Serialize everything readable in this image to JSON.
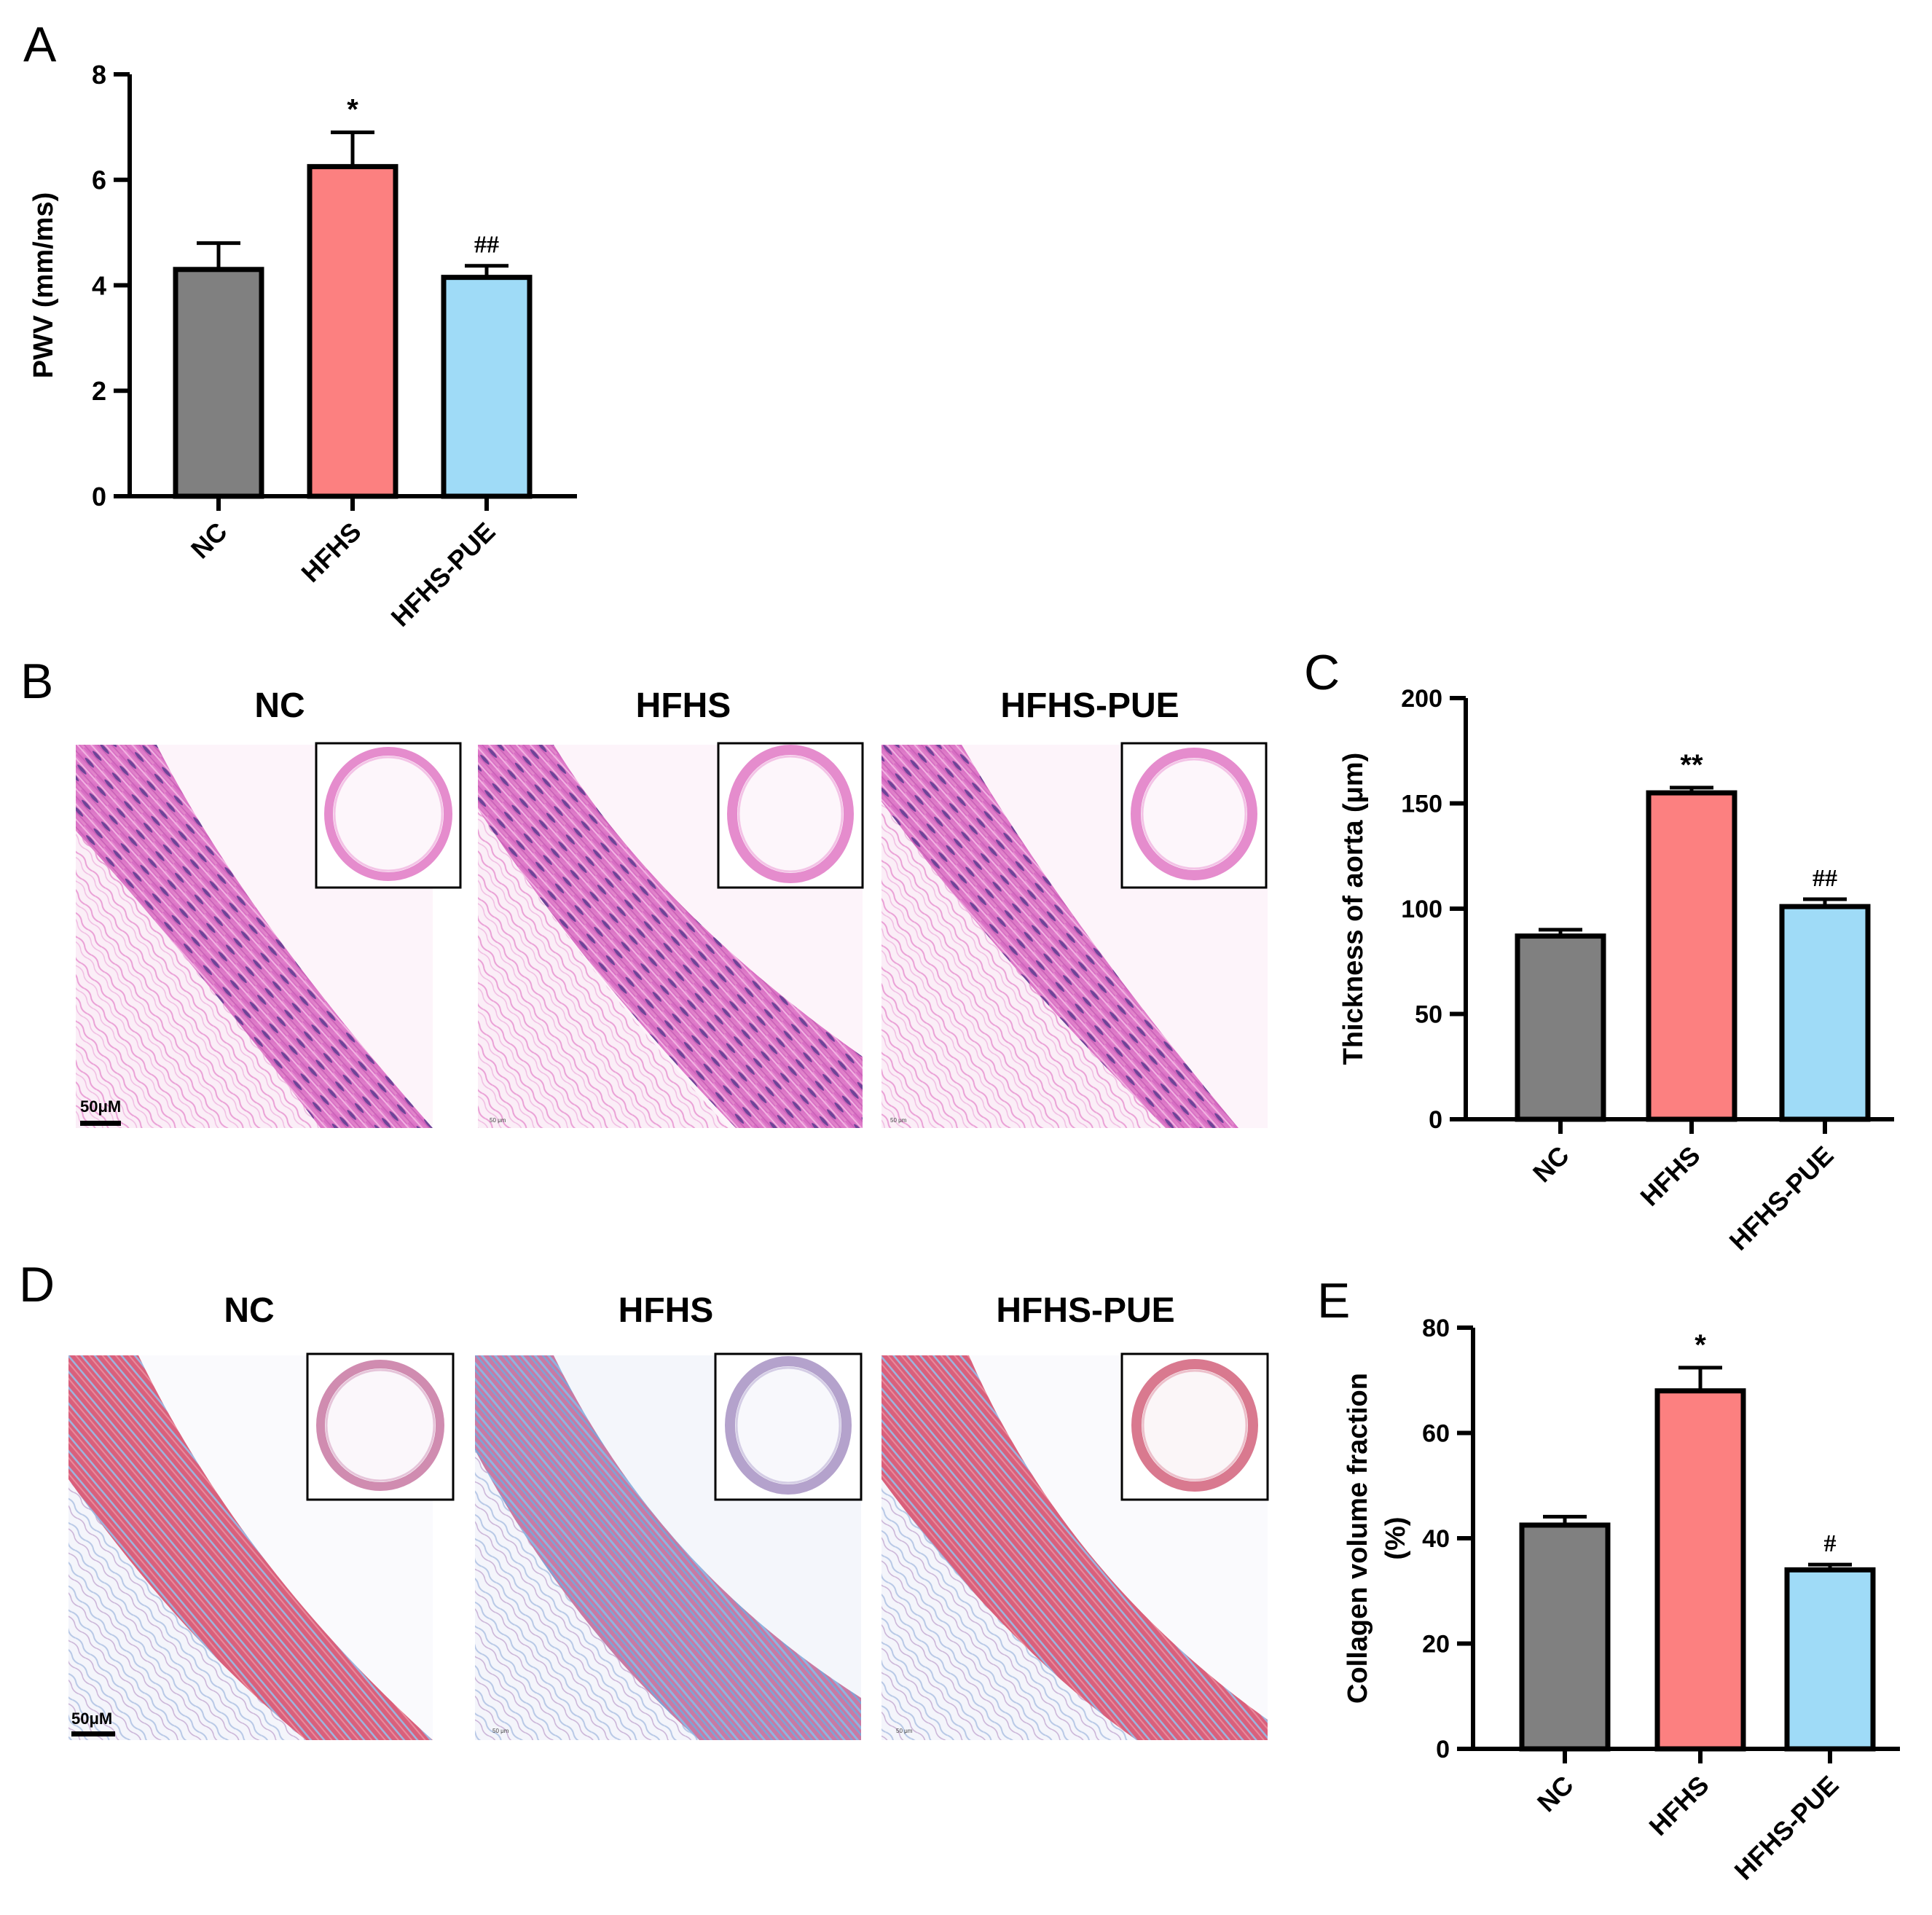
{
  "colors": {
    "nc": "#808080",
    "hfhs": "#fc8080",
    "hfhs_pue": "#9fdbf7",
    "he_stain": "#e27fc8",
    "he_nuclei": "#5a3a8c",
    "masson_red": "#e2506e",
    "masson_blue": "#8db1dc"
  },
  "panels": {
    "a": "A",
    "b": "B",
    "c": "C",
    "d": "D",
    "e": "E"
  },
  "micrographs": {
    "he": {
      "titles": [
        "NC",
        "HFHS",
        "HFHS-PUE"
      ],
      "scale_bar": "50μM",
      "tiny_scale": [
        "50 μm",
        "50 μm"
      ]
    },
    "masson": {
      "titles": [
        "NC",
        "HFHS",
        "HFHS-PUE"
      ],
      "scale_bar": "50μM",
      "tiny_scale": [
        "50 μm",
        "50 μm"
      ]
    }
  },
  "chart_data": [
    {
      "id": "A",
      "type": "bar",
      "categories": [
        "NC",
        "HFHS",
        "HFHS-PUE"
      ],
      "values": [
        4.3,
        6.25,
        4.15
      ],
      "errors": [
        0.5,
        0.65,
        0.22
      ],
      "annotations": [
        "",
        "*",
        "##"
      ],
      "title": "",
      "xlabel": "",
      "ylabel": "PWV (mm/ms)",
      "ylim": [
        0,
        8
      ],
      "yticks": [
        0,
        2,
        4,
        6,
        8
      ]
    },
    {
      "id": "C",
      "type": "bar",
      "categories": [
        "NC",
        "HFHS",
        "HFHS-PUE"
      ],
      "values": [
        87,
        155,
        101
      ],
      "errors": [
        3,
        2.5,
        3.5
      ],
      "annotations": [
        "",
        "**",
        "##"
      ],
      "title": "",
      "xlabel": "",
      "ylabel": "Thickness of aorta (μm)",
      "ylim": [
        0,
        200
      ],
      "yticks": [
        0,
        50,
        100,
        150,
        200
      ]
    },
    {
      "id": "E",
      "type": "bar",
      "categories": [
        "NC",
        "HFHS",
        "HFHS-PUE"
      ],
      "values": [
        42.5,
        68,
        34
      ],
      "errors": [
        1.6,
        4.4,
        1.0
      ],
      "annotations": [
        "",
        "*",
        "#"
      ],
      "title": "",
      "xlabel": "",
      "ylabel": "Collagen volume fraction",
      "ylabel2": "(%)",
      "ylim": [
        0,
        80
      ],
      "yticks": [
        0,
        20,
        40,
        60,
        80
      ]
    }
  ]
}
